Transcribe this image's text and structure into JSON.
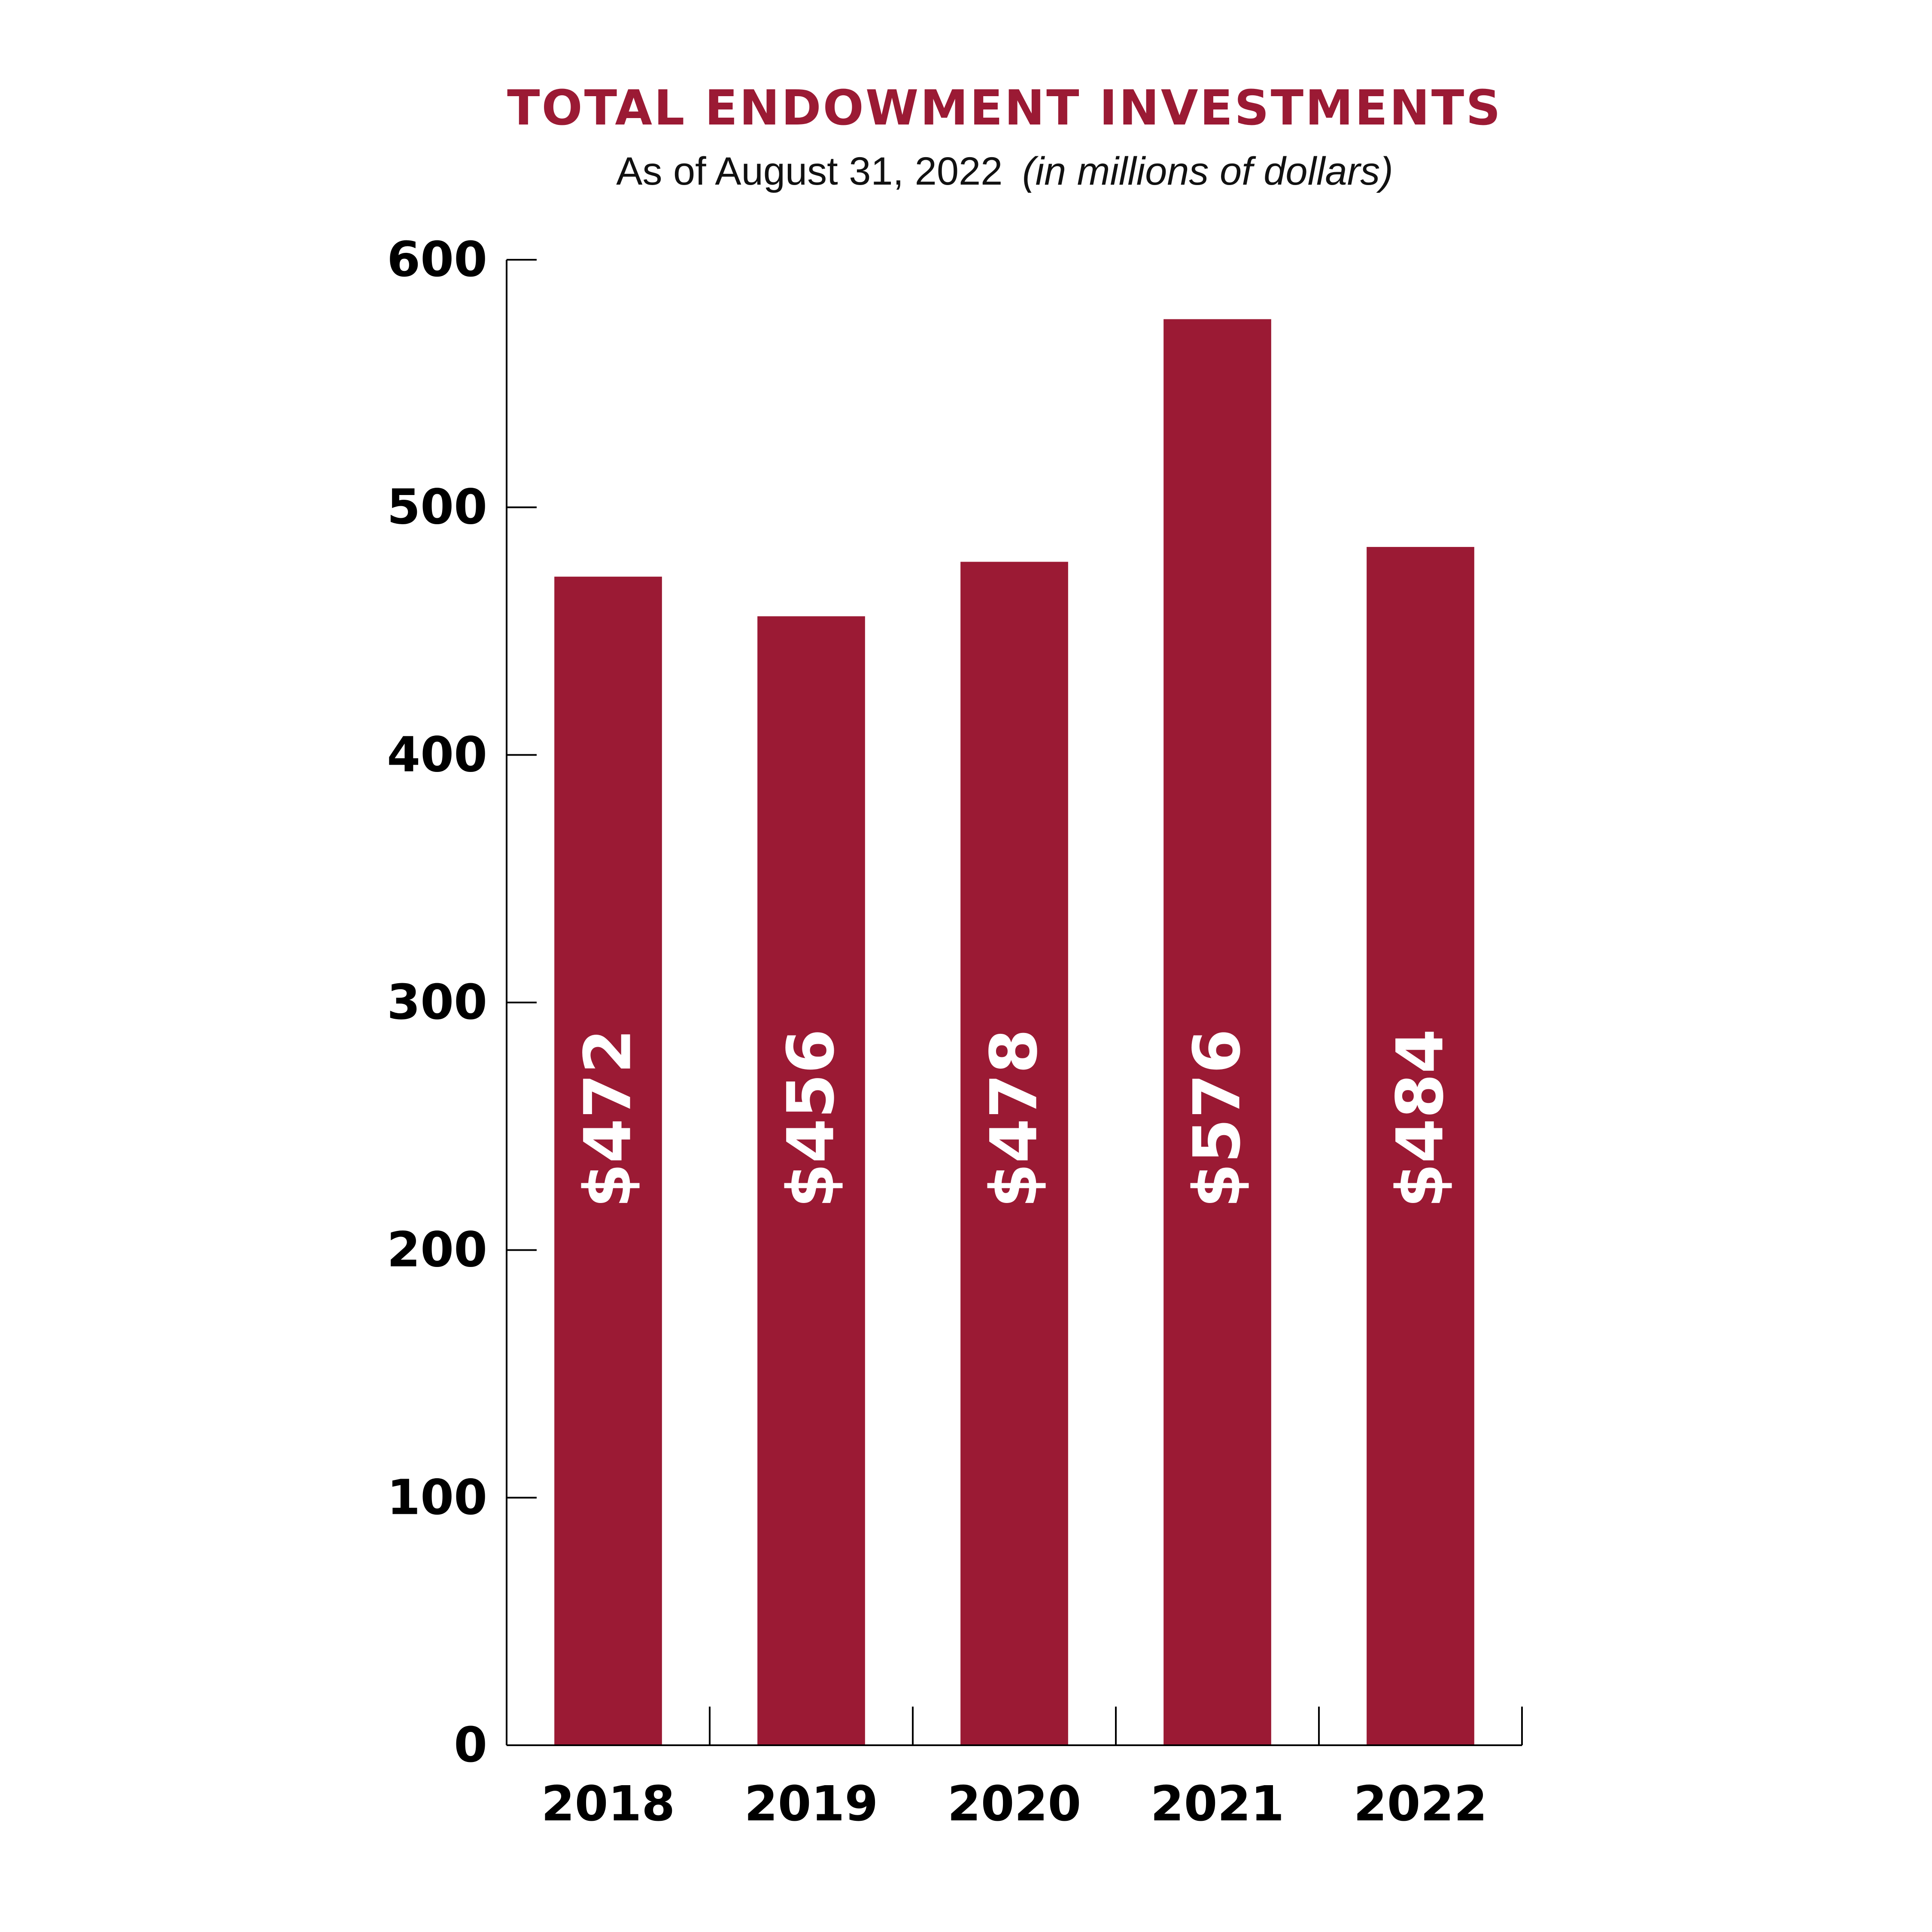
{
  "chart_data": {
    "type": "bar",
    "title": "TOTAL ENDOWMENT INVESTMENTS",
    "subtitle": {
      "main": "As of August 31,  2022",
      "italic": "(in millions of dollars)"
    },
    "xlabel": "",
    "ylabel": "",
    "categories": [
      "2018",
      "2019",
      "2020",
      "2021",
      "2022"
    ],
    "values": [
      472,
      456,
      478,
      576,
      484
    ],
    "value_labels": [
      "$472",
      "$456",
      "$478",
      "$576",
      "$484"
    ],
    "ylim": [
      0,
      600
    ],
    "yticks": [
      0,
      100,
      200,
      300,
      400,
      500,
      600
    ],
    "ytick_labels": [
      "0",
      "100",
      "200",
      "300",
      "400",
      "500",
      "600"
    ],
    "grid": false,
    "legend": "none",
    "colors": {
      "bar": "#9b1a34",
      "title": "#9b1a34",
      "axis": "#000000",
      "bar_label": "#ffffff"
    }
  }
}
